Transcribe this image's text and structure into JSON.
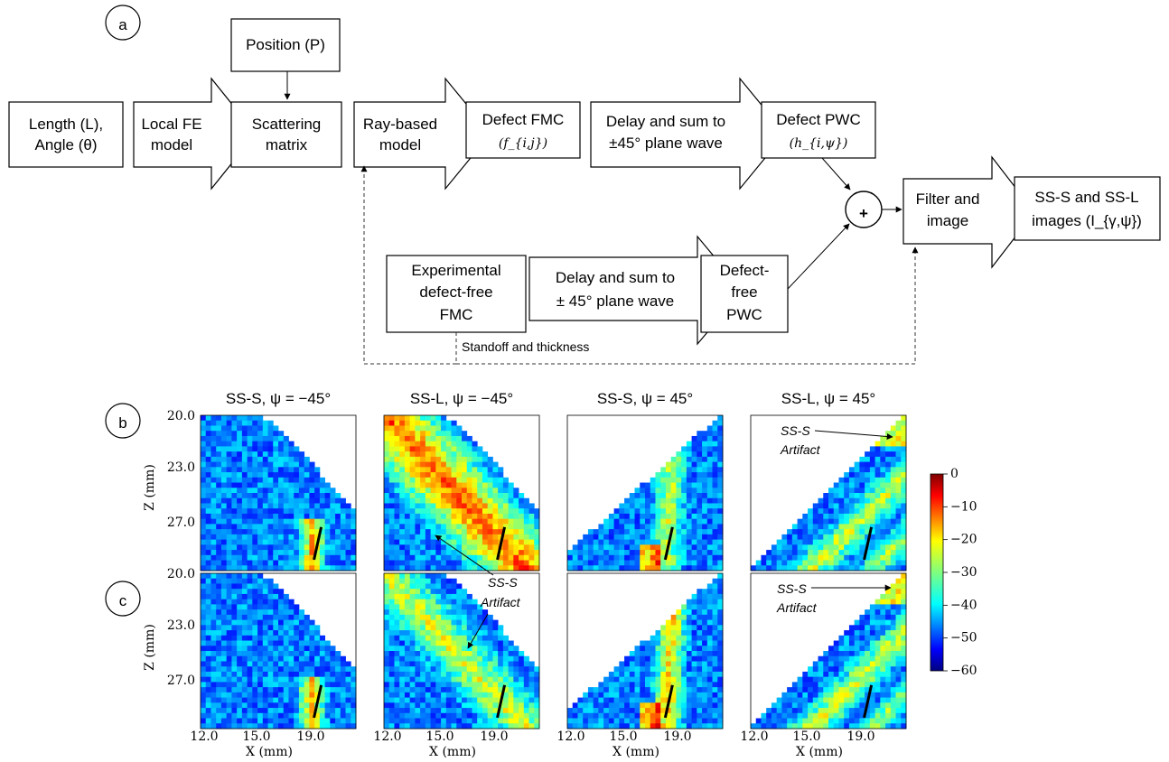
{
  "panel_labels": {
    "a": "a",
    "b": "b",
    "c": "c"
  },
  "flow": {
    "length_angle": [
      "Length (L),",
      "Angle (θ)"
    ],
    "local_fe": [
      "Local FE",
      "model"
    ],
    "position": "Position (P)",
    "scattering": [
      "Scattering",
      "matrix"
    ],
    "ray_based": [
      "Ray-based",
      "model"
    ],
    "defect_fmc": [
      "Defect FMC",
      "(f_{i,j})"
    ],
    "delay_sum_top": [
      "Delay and sum to",
      "±45° plane wave"
    ],
    "defect_pwc": [
      "Defect PWC",
      "(h_{i,ψ})"
    ],
    "plus": "+",
    "filter_image": [
      "Filter and",
      "image"
    ],
    "ss_images": [
      "SS-S and SS-L",
      "images (I_{γ,ψ})"
    ],
    "exp_free": [
      "Experimental",
      "defect-free",
      "FMC"
    ],
    "delay_sum_bottom": [
      "Delay and sum to",
      "± 45° plane wave"
    ],
    "free_pwc": [
      "Defect-",
      "free",
      "PWC"
    ],
    "standoff": "Standoff and thickness"
  },
  "images": {
    "col_titles": [
      "SS-S, ψ = −45°",
      "SS-L, ψ = −45°",
      "SS-S, ψ  = 45°",
      "SS-L, ψ = 45°"
    ],
    "ylabel": "Z (mm)",
    "xlabel": "X (mm)",
    "yticks": [
      "20.0",
      "23.0",
      "27.0"
    ],
    "xticks": [
      "12.0",
      "15.0",
      "19.0"
    ],
    "annotations": [
      [
        "SS-S",
        "Artifact"
      ],
      [
        "SS-S",
        "Artifact"
      ],
      [
        "SS-S",
        "Artifact"
      ],
      [
        "SS-S",
        "Artifact"
      ]
    ]
  },
  "colorbar": {
    "ticks": [
      "0",
      "−10",
      "−20",
      "−30",
      "−40",
      "−50",
      "−60"
    ],
    "range": [
      -60,
      0
    ]
  },
  "chart_data": {
    "type": "heatmap",
    "xlabel": "X (mm)",
    "ylabel": "Z (mm)",
    "series": [
      {
        "name": "SS-S, ψ = −45°",
        "row": "b"
      },
      {
        "name": "SS-L, ψ = −45°",
        "row": "b"
      },
      {
        "name": "SS-S, ψ  = 45°",
        "row": "b"
      },
      {
        "name": "SS-L, ψ = 45°",
        "row": "b"
      },
      {
        "name": "SS-S, ψ = −45°",
        "row": "c"
      },
      {
        "name": "SS-L, ψ = −45°",
        "row": "c"
      },
      {
        "name": "SS-S, ψ  = 45°",
        "row": "c"
      },
      {
        "name": "SS-L, ψ = 45°",
        "row": "c"
      }
    ],
    "zlim": [
      -60,
      0
    ]
  }
}
